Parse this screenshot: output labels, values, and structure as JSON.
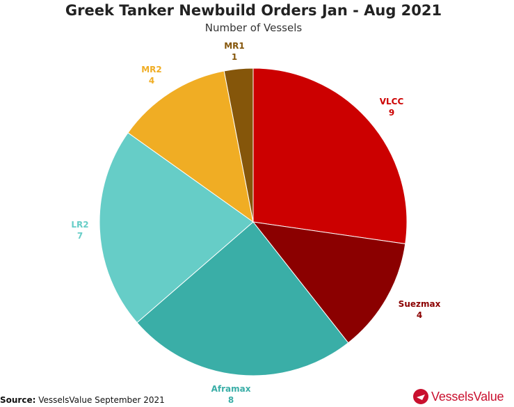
{
  "chart_data": {
    "type": "pie",
    "title": "Greek Tanker Newbuild Orders Jan - Aug 2021",
    "subtitle": "Number of Vessels",
    "slices": [
      {
        "label": "VLCC",
        "value": 9,
        "color": "#cc0000"
      },
      {
        "label": "Suezmax",
        "value": 4,
        "color": "#8b0000"
      },
      {
        "label": "Aframax",
        "value": 8,
        "color": "#3aaea7"
      },
      {
        "label": "LR2",
        "value": 7,
        "color": "#66cdc7"
      },
      {
        "label": "MR2",
        "value": 4,
        "color": "#f0ad24"
      },
      {
        "label": "MR1",
        "value": 1,
        "color": "#85560a"
      }
    ],
    "label_colors": [
      "#cc0000",
      "#8b0000",
      "#3aaea7",
      "#66cdc7",
      "#f0ad24",
      "#85560a"
    ]
  },
  "footer": {
    "source_label": "Source:",
    "source_text": "VesselsValue September 2021",
    "logo_text": "VesselsValue"
  }
}
